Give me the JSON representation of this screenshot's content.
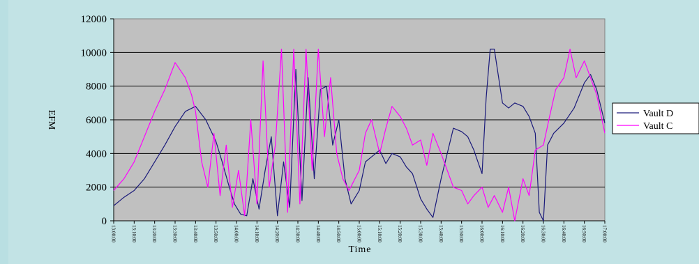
{
  "chart_data": {
    "type": "line",
    "title": "",
    "xlabel": "Time",
    "ylabel": "EFM",
    "ylim": [
      0,
      12000
    ],
    "yticks": [
      0,
      2000,
      4000,
      6000,
      8000,
      10000,
      12000
    ],
    "xlim": [
      "13:00:00",
      "17:00:00"
    ],
    "xticks": [
      "13:00:00",
      "13:10:00",
      "13:20:00",
      "13:30:00",
      "13:40:00",
      "13:50:00",
      "14:00:00",
      "14:10:00",
      "14:20:00",
      "14:30:00",
      "14:40:00",
      "14:50:00",
      "15:00:00",
      "15:10:00",
      "15:20:00",
      "15:30:00",
      "15:40:00",
      "15:50:00",
      "16:00:00",
      "16:10:00",
      "16:20:00",
      "16:30:00",
      "16:40:00",
      "16:50:00",
      "17:00:00"
    ],
    "grid": true,
    "legend_position": "right",
    "series": [
      {
        "name": "Vault D",
        "color": "#1a1a7a",
        "x": [
          "13:00:00",
          "13:05:00",
          "13:10:00",
          "13:15:00",
          "13:20:00",
          "13:25:00",
          "13:30:00",
          "13:35:00",
          "13:40:00",
          "13:45:00",
          "13:50:00",
          "13:53:00",
          "13:56:00",
          "13:59:00",
          "14:02:00",
          "14:05:00",
          "14:08:00",
          "14:11:00",
          "14:14:00",
          "14:17:00",
          "14:20:00",
          "14:23:00",
          "14:26:00",
          "14:29:00",
          "14:32:00",
          "14:35:00",
          "14:38:00",
          "14:41:00",
          "14:44:00",
          "14:47:00",
          "14:50:00",
          "14:53:00",
          "14:56:00",
          "15:00:00",
          "15:03:00",
          "15:06:00",
          "15:10:00",
          "15:13:00",
          "15:16:00",
          "15:20:00",
          "15:23:00",
          "15:26:00",
          "15:30:00",
          "15:33:00",
          "15:36:00",
          "15:40:00",
          "15:43:00",
          "15:46:00",
          "15:50:00",
          "15:53:00",
          "15:56:00",
          "15:58:00",
          "16:00:00",
          "16:02:00",
          "16:04:00",
          "16:06:00",
          "16:10:00",
          "16:13:00",
          "16:16:00",
          "16:20:00",
          "16:23:00",
          "16:26:00",
          "16:28:00",
          "16:30:00",
          "16:32:00",
          "16:35:00",
          "16:40:00",
          "16:45:00",
          "16:50:00",
          "16:53:00",
          "16:56:00",
          "17:00:00"
        ],
        "values": [
          900,
          1400,
          1800,
          2500,
          3500,
          4500,
          5600,
          6500,
          6800,
          6000,
          4700,
          3500,
          2200,
          1000,
          400,
          300,
          2500,
          700,
          3000,
          5000,
          300,
          3500,
          800,
          9000,
          1200,
          8500,
          2500,
          7800,
          8000,
          4500,
          6000,
          2500,
          1000,
          1800,
          3500,
          3800,
          4200,
          3400,
          4000,
          3800,
          3200,
          2800,
          1300,
          700,
          200,
          2500,
          4000,
          5500,
          5300,
          5000,
          4200,
          3500,
          2800,
          7300,
          10200,
          10200,
          7000,
          6700,
          7000,
          6800,
          6200,
          5200,
          500,
          0,
          4500,
          5200,
          5800,
          6700,
          8200,
          8700,
          7800,
          5800
        ]
      },
      {
        "name": "Vault C",
        "color": "#ff00ff",
        "x": [
          "13:00:00",
          "13:05:00",
          "13:10:00",
          "13:15:00",
          "13:20:00",
          "13:25:00",
          "13:30:00",
          "13:35:00",
          "13:38:00",
          "13:40:00",
          "13:43:00",
          "13:46:00",
          "13:49:00",
          "13:52:00",
          "13:55:00",
          "13:58:00",
          "14:01:00",
          "14:04:00",
          "14:07:00",
          "14:10:00",
          "14:13:00",
          "14:16:00",
          "14:19:00",
          "14:22:00",
          "14:25:00",
          "14:28:00",
          "14:31:00",
          "14:34:00",
          "14:37:00",
          "14:40:00",
          "14:43:00",
          "14:46:00",
          "14:49:00",
          "14:52:00",
          "14:55:00",
          "15:00:00",
          "15:03:00",
          "15:06:00",
          "15:10:00",
          "15:13:00",
          "15:16:00",
          "15:20:00",
          "15:23:00",
          "15:26:00",
          "15:30:00",
          "15:33:00",
          "15:36:00",
          "15:40:00",
          "15:43:00",
          "15:46:00",
          "15:50:00",
          "15:53:00",
          "15:56:00",
          "16:00:00",
          "16:03:00",
          "16:06:00",
          "16:10:00",
          "16:13:00",
          "16:16:00",
          "16:20:00",
          "16:23:00",
          "16:26:00",
          "16:30:00",
          "16:33:00",
          "16:36:00",
          "16:40:00",
          "16:43:00",
          "16:46:00",
          "16:50:00",
          "16:53:00",
          "16:56:00",
          "17:00:00"
        ],
        "values": [
          1800,
          2500,
          3500,
          5000,
          6500,
          7800,
          9400,
          8500,
          7500,
          6500,
          3500,
          2000,
          5200,
          1500,
          4500,
          800,
          3000,
          300,
          6000,
          1000,
          9500,
          2000,
          4500,
          10200,
          500,
          10200,
          1000,
          10200,
          3000,
          10200,
          5000,
          8500,
          4000,
          2500,
          1800,
          3000,
          5200,
          6000,
          4000,
          5500,
          6800,
          6200,
          5500,
          4500,
          4800,
          3300,
          5200,
          4000,
          3000,
          2000,
          1800,
          1000,
          1500,
          2000,
          800,
          1500,
          500,
          2000,
          0,
          2500,
          1500,
          4200,
          4500,
          6200,
          7800,
          8500,
          10200,
          8500,
          9500,
          8500,
          7500,
          5200
        ]
      }
    ]
  }
}
